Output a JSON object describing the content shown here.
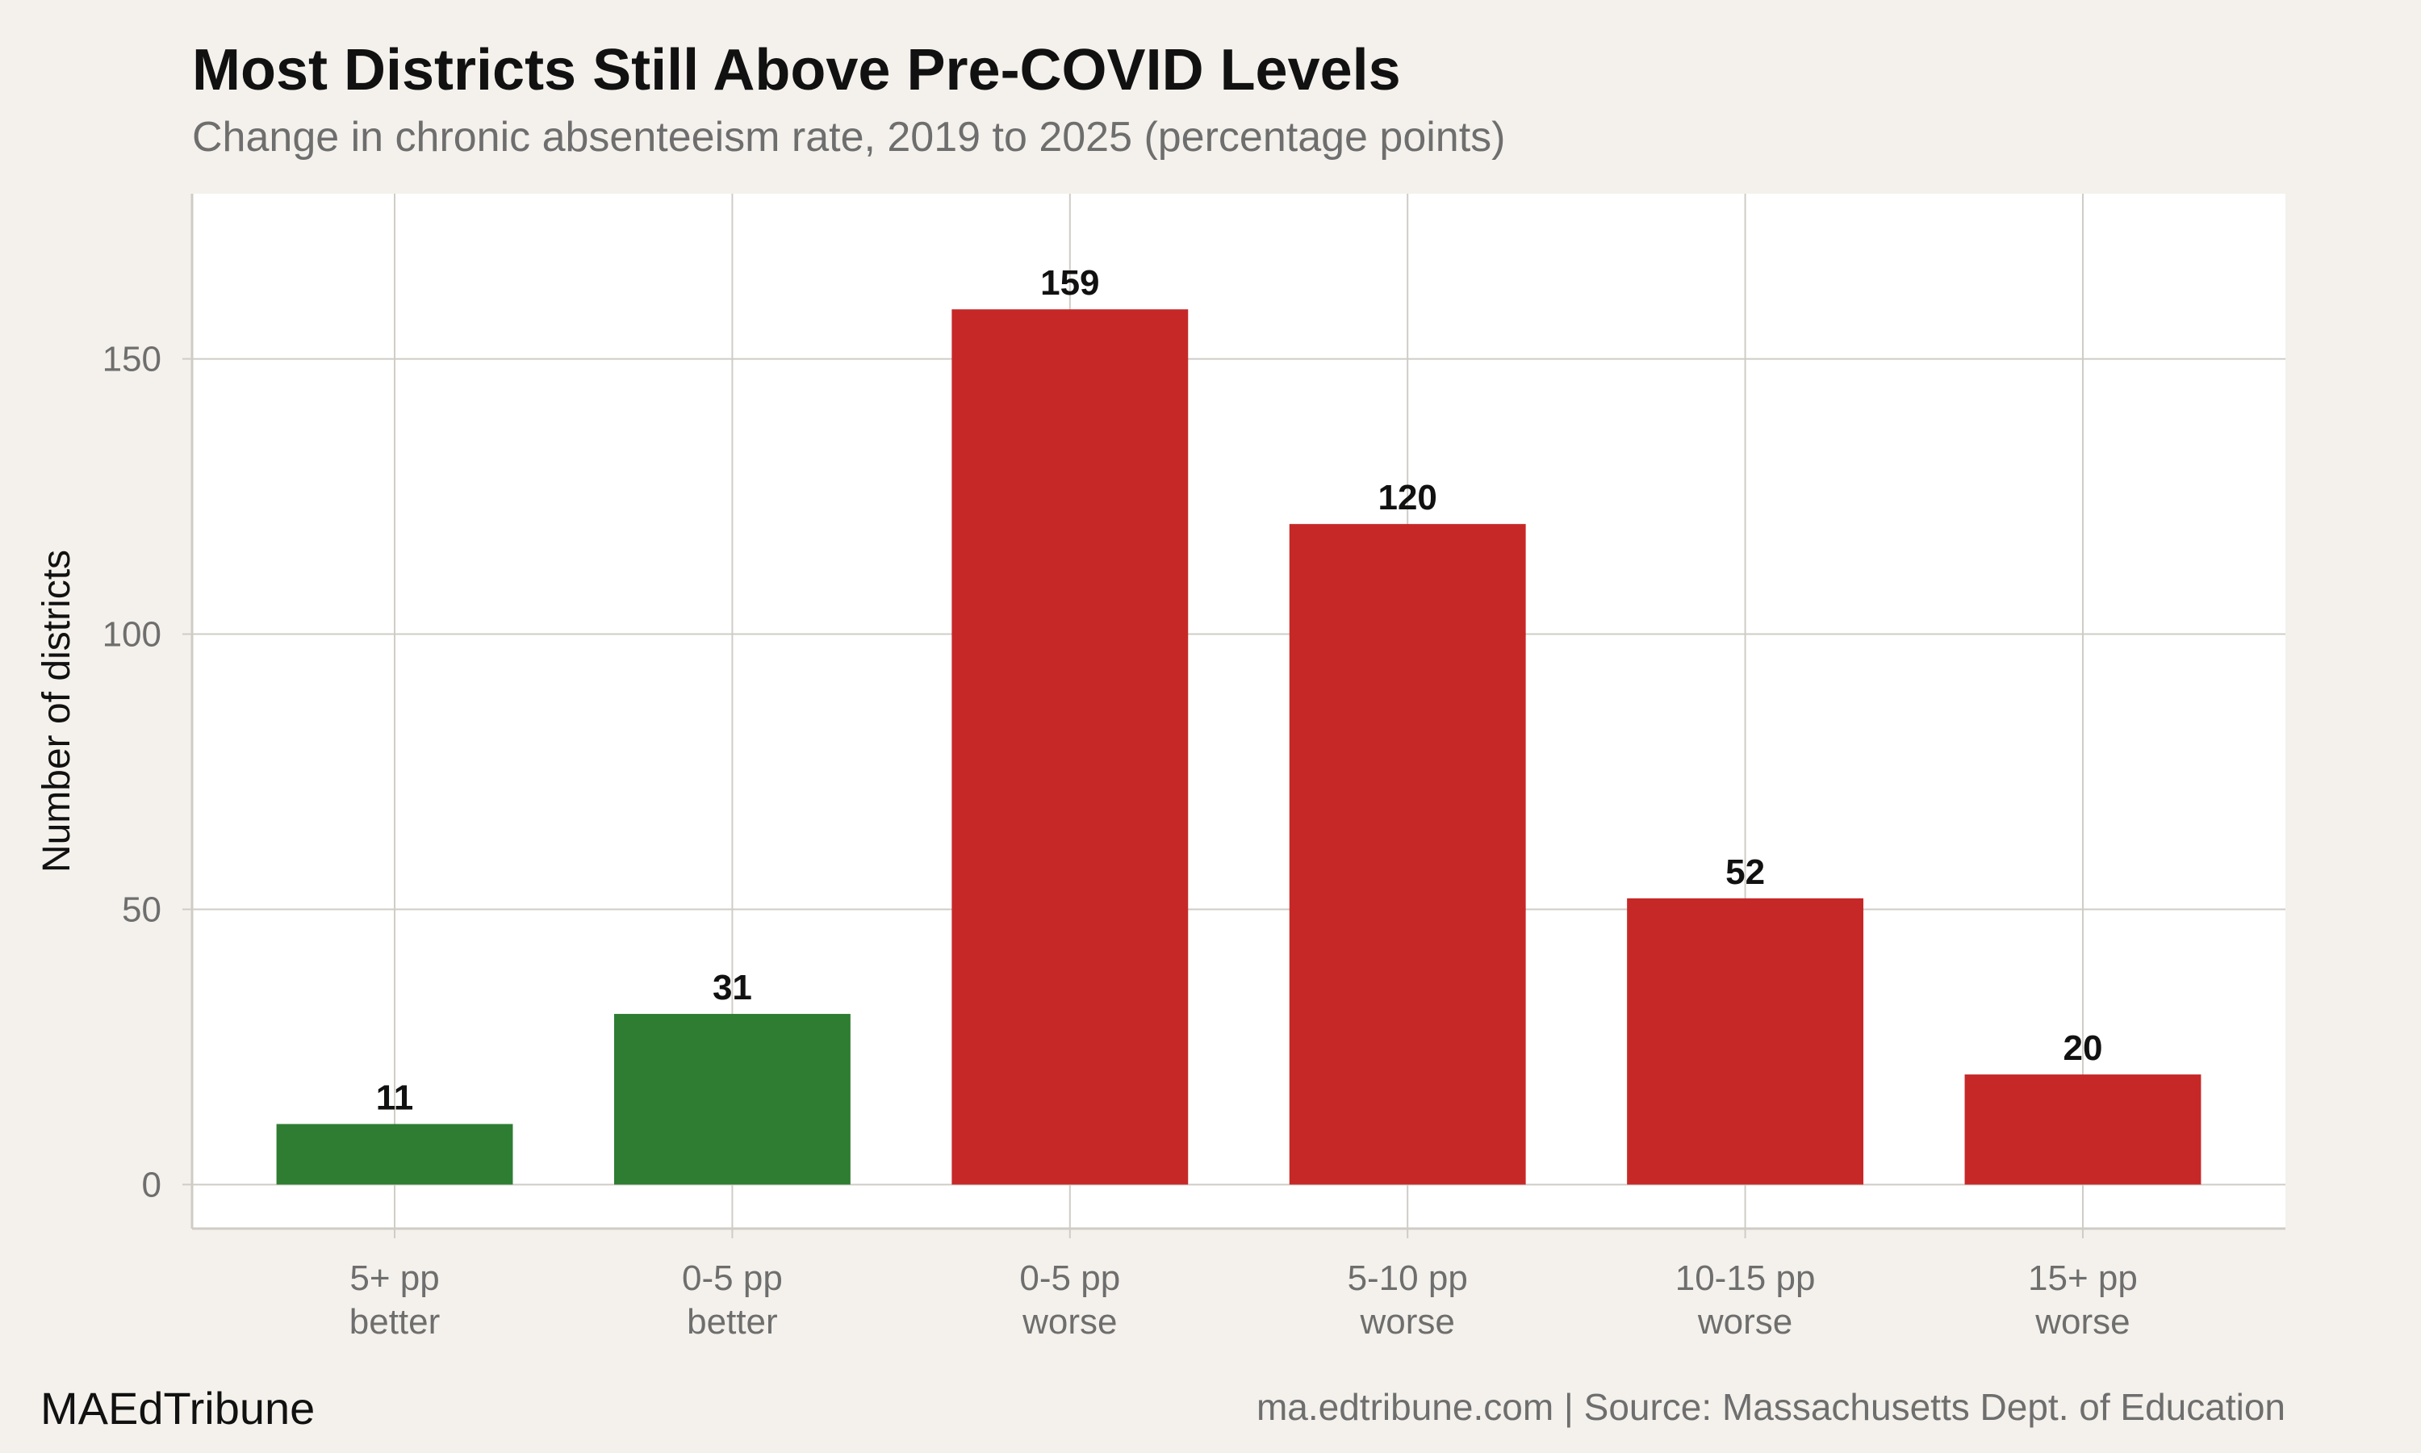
{
  "header": {
    "title": "Most Districts Still Above Pre-COVID Levels",
    "subtitle": "Change in chronic absenteeism rate, 2019 to 2025 (percentage points)"
  },
  "footer": {
    "brand": "MAEdTribune",
    "source": "ma.edtribune.com | Source: Massachusetts Dept. of Education"
  },
  "colors": {
    "better": "#2e7d32",
    "worse": "#c62828",
    "panel": "#ffffff",
    "background": "#f4f1ec",
    "grid": "#cfccc6"
  },
  "chart_data": {
    "type": "bar",
    "title": "Most Districts Still Above Pre-COVID Levels",
    "subtitle": "Change in chronic absenteeism rate, 2019 to 2025 (percentage points)",
    "xlabel": "",
    "ylabel": "Number of districts",
    "categories": [
      [
        "5+ pp",
        "better"
      ],
      [
        "0-5 pp",
        "better"
      ],
      [
        "0-5 pp",
        "worse"
      ],
      [
        "5-10 pp",
        "worse"
      ],
      [
        "10-15 pp",
        "worse"
      ],
      [
        "15+ pp",
        "worse"
      ]
    ],
    "values": [
      11,
      31,
      159,
      120,
      52,
      20
    ],
    "data_labels": [
      "11",
      "31",
      "159",
      "120",
      "52",
      "20"
    ],
    "bar_groups": [
      "better",
      "better",
      "worse",
      "worse",
      "worse",
      "worse"
    ],
    "yticks": [
      0,
      50,
      100,
      150
    ],
    "ylim": [
      -8,
      180
    ],
    "grid": true,
    "legend": "none"
  }
}
